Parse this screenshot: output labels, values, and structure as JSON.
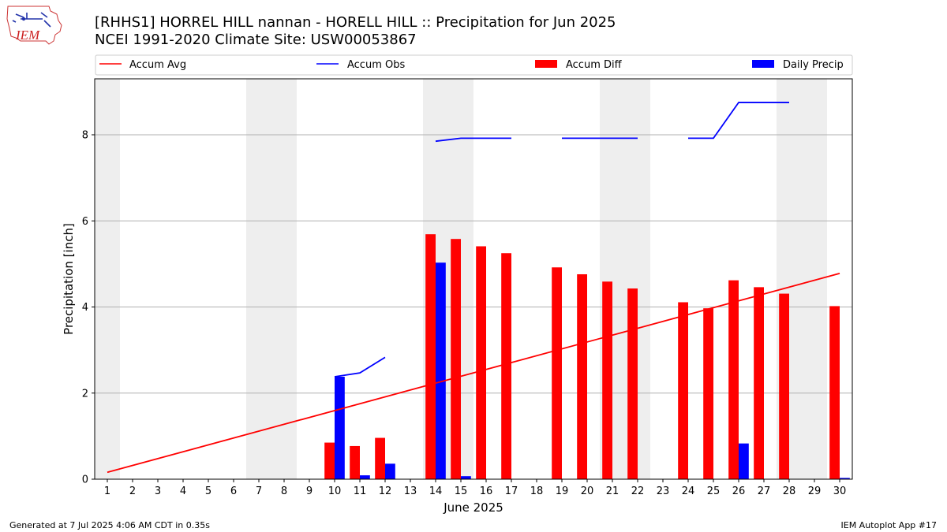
{
  "title": "[RHHS1] HORREL HILL nannan - HORELL HILL :: Precipitation for Jun 2025",
  "subtitle": "NCEI 1991-2020 Climate Site: USW00053867",
  "logo_text": "IEM",
  "footer_left": "Generated at 7 Jul 2025 4:06 AM CDT in 0.35s",
  "footer_right": "IEM Autoplot App #17",
  "colors": {
    "accum_avg": "#ff0000",
    "accum_obs": "#0000ff",
    "accum_diff": "#ff0000",
    "daily_precip": "#0000ff",
    "weekend_shade": "#eeeeee",
    "grid": "#b0b0b0"
  },
  "chart_data": {
    "type": "bar",
    "xlabel": "June 2025",
    "ylabel": "Precipitation [inch]",
    "ylim": [
      0,
      9.3
    ],
    "yticks": [
      0,
      2,
      4,
      6,
      8
    ],
    "grid": "horizontal",
    "legend_placement": "top, above plot",
    "legend": [
      "Accum Avg",
      "Accum Obs",
      "Accum Diff",
      "Daily Precip"
    ],
    "days": [
      1,
      2,
      3,
      4,
      5,
      6,
      7,
      8,
      9,
      10,
      11,
      12,
      13,
      14,
      15,
      16,
      17,
      18,
      19,
      20,
      21,
      22,
      23,
      24,
      25,
      26,
      27,
      28,
      29,
      30
    ],
    "weekend_days": [
      1,
      7,
      8,
      14,
      15,
      21,
      22,
      28,
      29
    ],
    "accum_avg": {
      "start": [
        1,
        0.16
      ],
      "end": [
        30,
        4.78
      ]
    },
    "accum_obs": [
      {
        "x": [
          10,
          11,
          12
        ],
        "y": [
          2.38,
          2.47,
          2.83
        ]
      },
      {
        "x": [
          14,
          15,
          16,
          17
        ],
        "y": [
          7.85,
          7.92,
          7.92,
          7.92
        ]
      },
      {
        "x": [
          19,
          20,
          21,
          22
        ],
        "y": [
          7.92,
          7.92,
          7.92,
          7.92
        ]
      },
      {
        "x": [
          24,
          25,
          26,
          27,
          28
        ],
        "y": [
          7.92,
          7.92,
          8.75,
          8.75,
          8.75
        ]
      }
    ],
    "accum_diff": [
      {
        "day": 10,
        "value": 0.85
      },
      {
        "day": 11,
        "value": 0.77
      },
      {
        "day": 12,
        "value": 0.96
      },
      {
        "day": 14,
        "value": 5.69
      },
      {
        "day": 15,
        "value": 5.58
      },
      {
        "day": 16,
        "value": 5.41
      },
      {
        "day": 17,
        "value": 5.25
      },
      {
        "day": 19,
        "value": 4.92
      },
      {
        "day": 20,
        "value": 4.76
      },
      {
        "day": 21,
        "value": 4.59
      },
      {
        "day": 22,
        "value": 4.43
      },
      {
        "day": 24,
        "value": 4.11
      },
      {
        "day": 25,
        "value": 3.97
      },
      {
        "day": 26,
        "value": 4.62
      },
      {
        "day": 27,
        "value": 4.46
      },
      {
        "day": 28,
        "value": 4.31
      },
      {
        "day": 30,
        "value": 4.02
      }
    ],
    "daily_precip": [
      {
        "day": 10,
        "value": 2.38
      },
      {
        "day": 11,
        "value": 0.09
      },
      {
        "day": 12,
        "value": 0.36
      },
      {
        "day": 14,
        "value": 5.03
      },
      {
        "day": 15,
        "value": 0.07
      },
      {
        "day": 26,
        "value": 0.83
      },
      {
        "day": 30,
        "value": 0.03
      }
    ]
  }
}
